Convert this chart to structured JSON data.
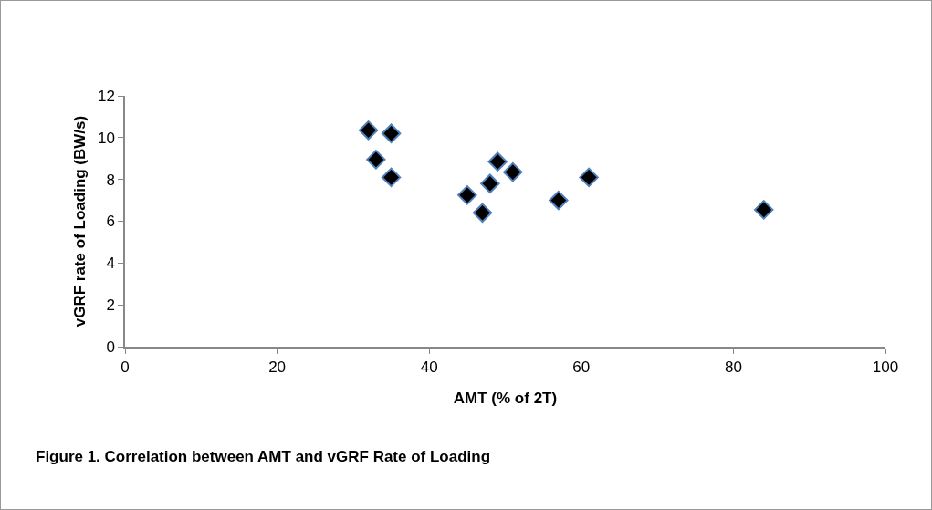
{
  "chart_data": {
    "type": "scatter",
    "xlabel": "AMT (% of 2T)",
    "ylabel": "vGRF rate of Loading (BW/s)",
    "annotations": [
      "Figure 1. Correlation between AMT and vGRF Rate of Loading"
    ],
    "x": [
      32,
      35,
      33,
      35,
      45,
      47,
      48,
      49,
      51,
      57,
      61,
      84
    ],
    "series": [
      {
        "color": "#000000",
        "values": [
          10.35,
          10.2,
          8.95,
          8.1,
          7.25,
          6.4,
          7.8,
          8.85,
          8.35,
          7.0,
          8.1,
          6.55
        ]
      }
    ],
    "xlim": [
      0,
      100
    ],
    "xticks": [
      0,
      20,
      40,
      60,
      80,
      100
    ],
    "ylim": [
      0,
      12
    ],
    "yticks": [
      0,
      2,
      4,
      6,
      8,
      10,
      12
    ],
    "grid": false,
    "legend": false,
    "marker": "diamond"
  }
}
